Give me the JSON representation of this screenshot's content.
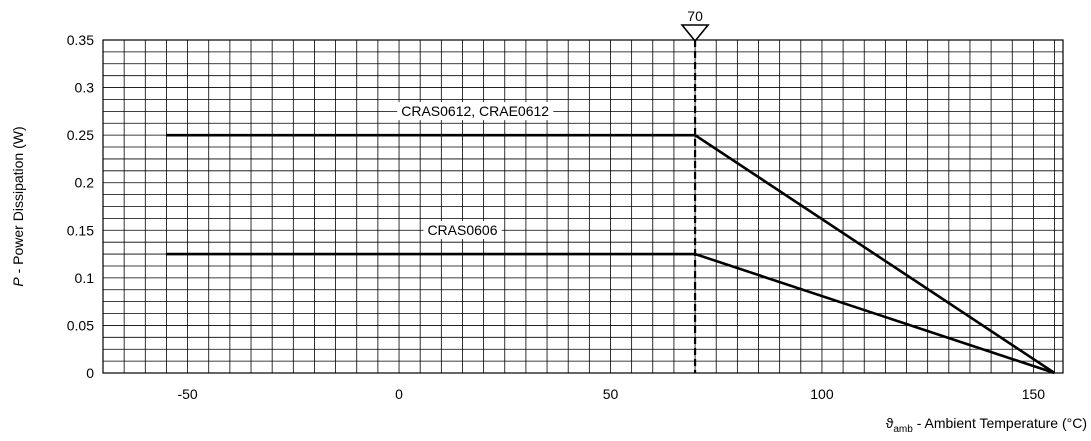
{
  "chart_data": {
    "type": "line",
    "title": "",
    "xlabel": {
      "symbol": "ϑ",
      "subscript": "amb",
      "text": " - Ambient Temperature (°C)"
    },
    "ylabel": {
      "symbol": "P",
      "text": " - Power Dissipation (W)"
    },
    "xlim": [
      -70,
      157
    ],
    "ylim": [
      0,
      0.35
    ],
    "x_ticks": [
      -50,
      0,
      50,
      100,
      150
    ],
    "y_ticks": [
      0,
      0.05,
      0.1,
      0.15,
      0.2,
      0.25,
      0.3,
      0.35
    ],
    "x_tick_labels": [
      "-50",
      "0",
      "50",
      "100",
      "150"
    ],
    "y_tick_labels": [
      "0",
      "0.05",
      "0.1",
      "0.15",
      "0.2",
      "0.25",
      "0.3",
      "0.35"
    ],
    "grid": true,
    "grid_x_minor_step": 5,
    "grid_y_minor_step": 0.0125,
    "marker": {
      "x": 70,
      "label": "70",
      "style": "dashed-vertical-with-triangle"
    },
    "series": [
      {
        "name": "CRAS0612, CRAE0612",
        "x": [
          -55,
          70,
          155
        ],
        "y": [
          0.25,
          0.25,
          0
        ],
        "label_at": {
          "x": 18,
          "y": 0.27
        }
      },
      {
        "name": "CRAS0606",
        "x": [
          -55,
          70,
          155
        ],
        "y": [
          0.125,
          0.125,
          0
        ],
        "label_at": {
          "x": 15,
          "y": 0.145
        }
      }
    ]
  }
}
